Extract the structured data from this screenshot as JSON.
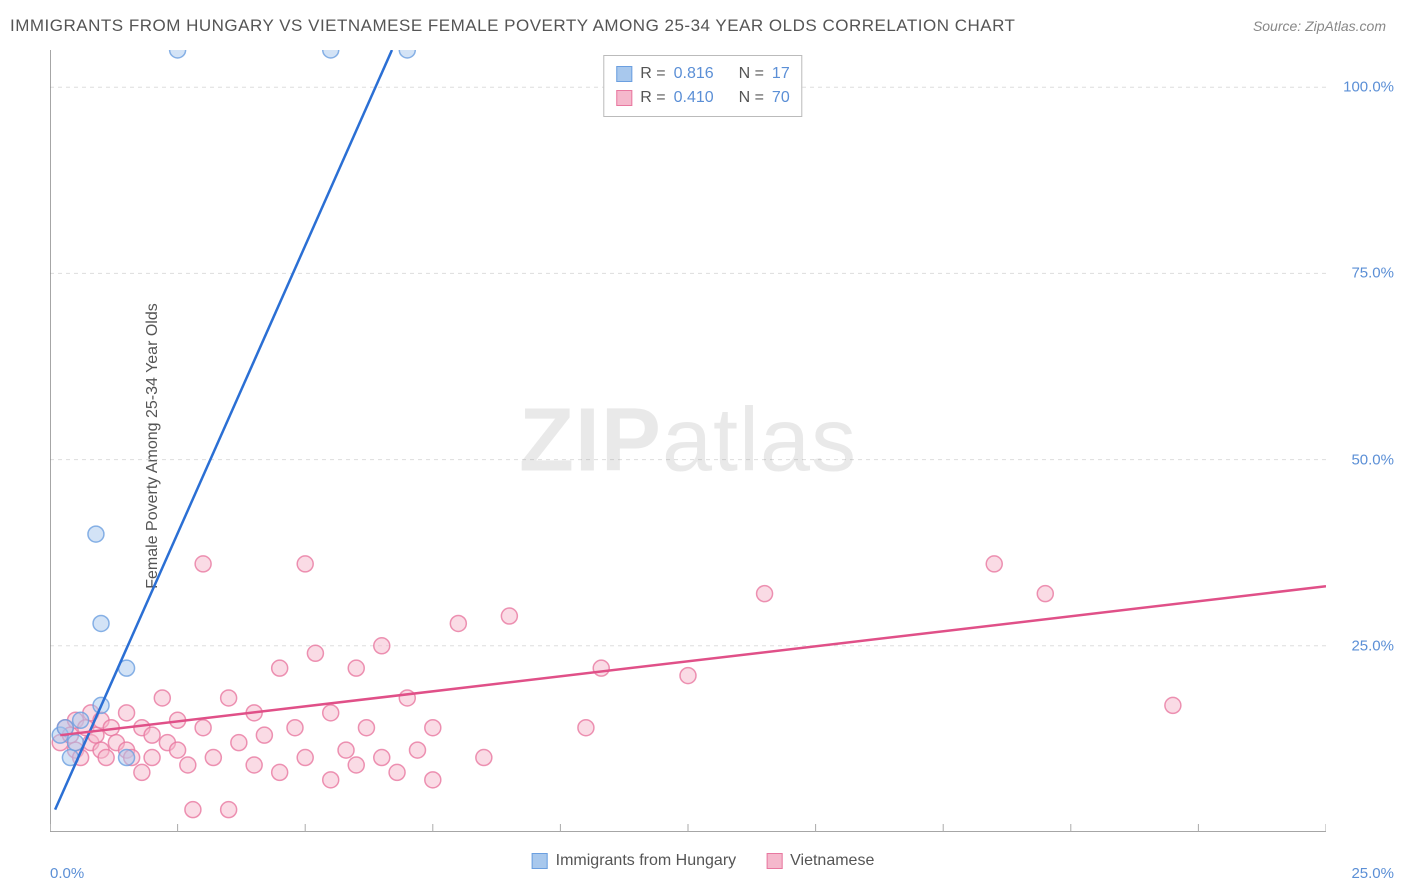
{
  "title": "IMMIGRANTS FROM HUNGARY VS VIETNAMESE FEMALE POVERTY AMONG 25-34 YEAR OLDS CORRELATION CHART",
  "source": "Source: ZipAtlas.com",
  "y_axis_label": "Female Poverty Among 25-34 Year Olds",
  "watermark_bold": "ZIP",
  "watermark_light": "atlas",
  "chart": {
    "type": "scatter",
    "background_color": "#ffffff",
    "grid_color": "#dddddd",
    "axis_color": "#888888",
    "tick_color": "#aaaaaa",
    "label_color": "#5b8fd6",
    "text_color": "#555555",
    "xlim": [
      0,
      25
    ],
    "ylim": [
      0,
      105
    ],
    "x_ticks": [
      0,
      2.5,
      5,
      7.5,
      10,
      12.5,
      15,
      17.5,
      20,
      22.5,
      25
    ],
    "y_gridlines": [
      25,
      50,
      75,
      100
    ],
    "x_tick_labels": {
      "min": "0.0%",
      "max": "25.0%"
    },
    "y_tick_labels": [
      "25.0%",
      "50.0%",
      "75.0%",
      "100.0%"
    ],
    "marker_radius": 8,
    "marker_opacity": 0.5,
    "line_width": 2.5,
    "series": [
      {
        "name": "Immigrants from Hungary",
        "color_stroke": "#6b9fe0",
        "color_fill": "#a8c8ed",
        "line_color": "#2b6fd4",
        "R": "0.816",
        "N": "17",
        "trend_x": [
          0.1,
          6.7
        ],
        "trend_y": [
          3,
          105
        ],
        "points": [
          [
            0.2,
            13
          ],
          [
            0.3,
            14
          ],
          [
            0.4,
            10
          ],
          [
            0.5,
            12
          ],
          [
            0.6,
            15
          ],
          [
            0.9,
            40
          ],
          [
            1.0,
            28
          ],
          [
            1.0,
            17
          ],
          [
            1.5,
            22
          ],
          [
            1.5,
            10
          ],
          [
            2.5,
            105
          ],
          [
            5.5,
            105
          ],
          [
            7.0,
            105
          ]
        ]
      },
      {
        "name": "Vietnamese",
        "color_stroke": "#e878a0",
        "color_fill": "#f5b8cc",
        "line_color": "#e05088",
        "R": "0.410",
        "N": "70",
        "trend_x": [
          0.2,
          25
        ],
        "trend_y": [
          13,
          33
        ],
        "points": [
          [
            0.2,
            12
          ],
          [
            0.3,
            14
          ],
          [
            0.4,
            13
          ],
          [
            0.5,
            11
          ],
          [
            0.5,
            15
          ],
          [
            0.6,
            10
          ],
          [
            0.7,
            14
          ],
          [
            0.8,
            12
          ],
          [
            0.8,
            16
          ],
          [
            0.9,
            13
          ],
          [
            1.0,
            11
          ],
          [
            1.0,
            15
          ],
          [
            1.1,
            10
          ],
          [
            1.2,
            14
          ],
          [
            1.3,
            12
          ],
          [
            1.5,
            11
          ],
          [
            1.5,
            16
          ],
          [
            1.6,
            10
          ],
          [
            1.8,
            14
          ],
          [
            1.8,
            8
          ],
          [
            2.0,
            13
          ],
          [
            2.0,
            10
          ],
          [
            2.2,
            18
          ],
          [
            2.3,
            12
          ],
          [
            2.5,
            11
          ],
          [
            2.5,
            15
          ],
          [
            2.7,
            9
          ],
          [
            2.8,
            3
          ],
          [
            3.0,
            14
          ],
          [
            3.0,
            36
          ],
          [
            3.2,
            10
          ],
          [
            3.5,
            18
          ],
          [
            3.5,
            3
          ],
          [
            3.7,
            12
          ],
          [
            4.0,
            16
          ],
          [
            4.0,
            9
          ],
          [
            4.2,
            13
          ],
          [
            4.5,
            22
          ],
          [
            4.5,
            8
          ],
          [
            4.8,
            14
          ],
          [
            5.0,
            36
          ],
          [
            5.0,
            10
          ],
          [
            5.2,
            24
          ],
          [
            5.5,
            16
          ],
          [
            5.5,
            7
          ],
          [
            5.8,
            11
          ],
          [
            6.0,
            22
          ],
          [
            6.0,
            9
          ],
          [
            6.2,
            14
          ],
          [
            6.5,
            25
          ],
          [
            6.5,
            10
          ],
          [
            6.8,
            8
          ],
          [
            7.0,
            18
          ],
          [
            7.2,
            11
          ],
          [
            7.5,
            14
          ],
          [
            7.5,
            7
          ],
          [
            8.0,
            28
          ],
          [
            8.5,
            10
          ],
          [
            9.0,
            29
          ],
          [
            10.5,
            14
          ],
          [
            10.8,
            22
          ],
          [
            12.5,
            21
          ],
          [
            14.0,
            32
          ],
          [
            18.5,
            36
          ],
          [
            19.5,
            32
          ],
          [
            22.0,
            17
          ]
        ]
      }
    ]
  },
  "legend_top": {
    "R_label": "R =",
    "N_label": "N ="
  },
  "legend_bottom_labels": [
    "Immigrants from Hungary",
    "Vietnamese"
  ]
}
